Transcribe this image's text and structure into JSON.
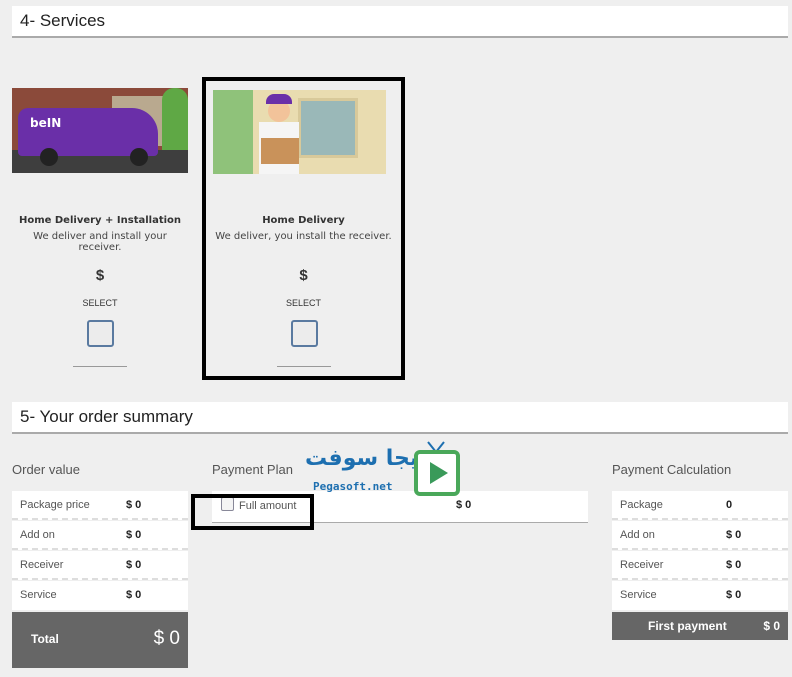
{
  "services": {
    "header": "4- Services",
    "cards": [
      {
        "title": "Home Delivery + Installation",
        "desc": "We deliver and install your receiver.",
        "price": "$",
        "select": "SELECT",
        "selected": false
      },
      {
        "title": "Home Delivery",
        "desc": "We deliver, you install the receiver.",
        "price": "$",
        "select": "SELECT",
        "selected": false
      }
    ]
  },
  "summary": {
    "header": "5- Your order summary",
    "order_value": {
      "label": "Order value",
      "rows": [
        {
          "k": "Package price",
          "v": "$ 0"
        },
        {
          "k": "Add on",
          "v": "$ 0"
        },
        {
          "k": "Receiver",
          "v": "$ 0"
        },
        {
          "k": "Service",
          "v": "$ 0"
        }
      ],
      "total_label": "Total",
      "total_value": "$ 0"
    },
    "payment_plan": {
      "label": "Payment Plan",
      "option": "Full amount",
      "value": "$ 0",
      "checked": false
    },
    "payment_calc": {
      "label": "Payment Calculation",
      "rows": [
        {
          "k": "Package",
          "v": "0"
        },
        {
          "k": "Add on",
          "v": "$ 0"
        },
        {
          "k": "Receiver",
          "v": "$ 0"
        },
        {
          "k": "Service",
          "v": "$ 0"
        }
      ],
      "first_label": "First payment",
      "first_value": "$ 0"
    }
  },
  "watermark": {
    "arabic": "بيجا سوفت",
    "latin": "Pegasoft.net"
  },
  "colors": {
    "total_bg": "#666666",
    "accent_box": "#000000"
  }
}
